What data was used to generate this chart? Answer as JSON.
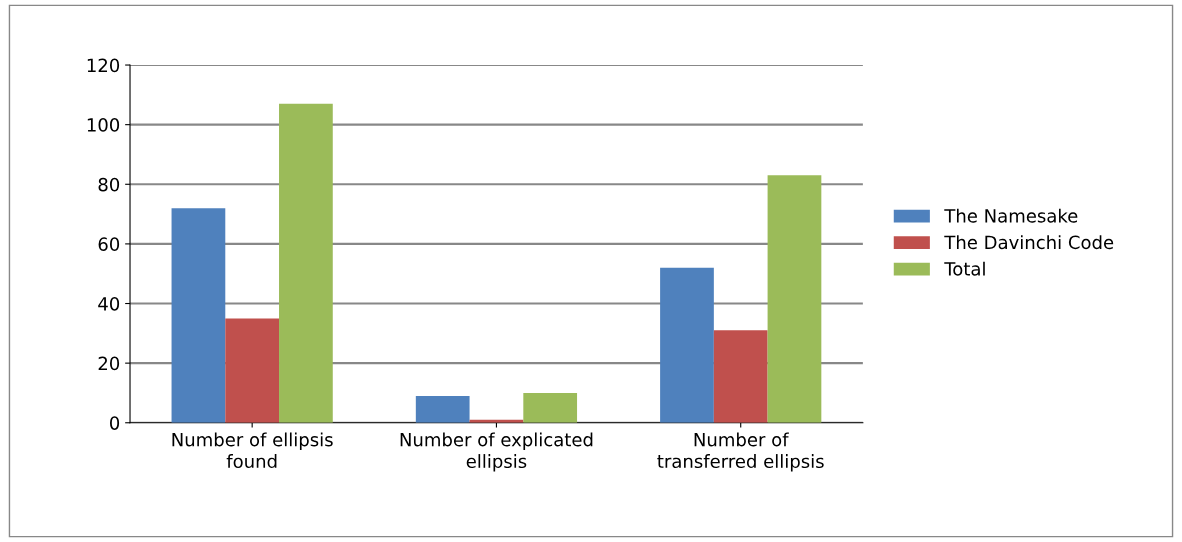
{
  "chart_data": {
    "type": "bar",
    "categories": [
      "Number of ellipsis found",
      "Number of explicated ellipsis",
      "Number of transferred ellipsis"
    ],
    "series": [
      {
        "name": "The Namesake",
        "color": "#4f81bd",
        "values": [
          72,
          9,
          52
        ]
      },
      {
        "name": "The Davinchi Code",
        "color": "#c0504d",
        "values": [
          35,
          1,
          31
        ]
      },
      {
        "name": "Total",
        "color": "#9bbb59",
        "values": [
          107,
          10,
          83
        ]
      }
    ],
    "ylim": [
      0,
      120
    ],
    "yticks": [
      0,
      20,
      40,
      60,
      80,
      100,
      120
    ],
    "grid": "y",
    "legend": "right"
  }
}
